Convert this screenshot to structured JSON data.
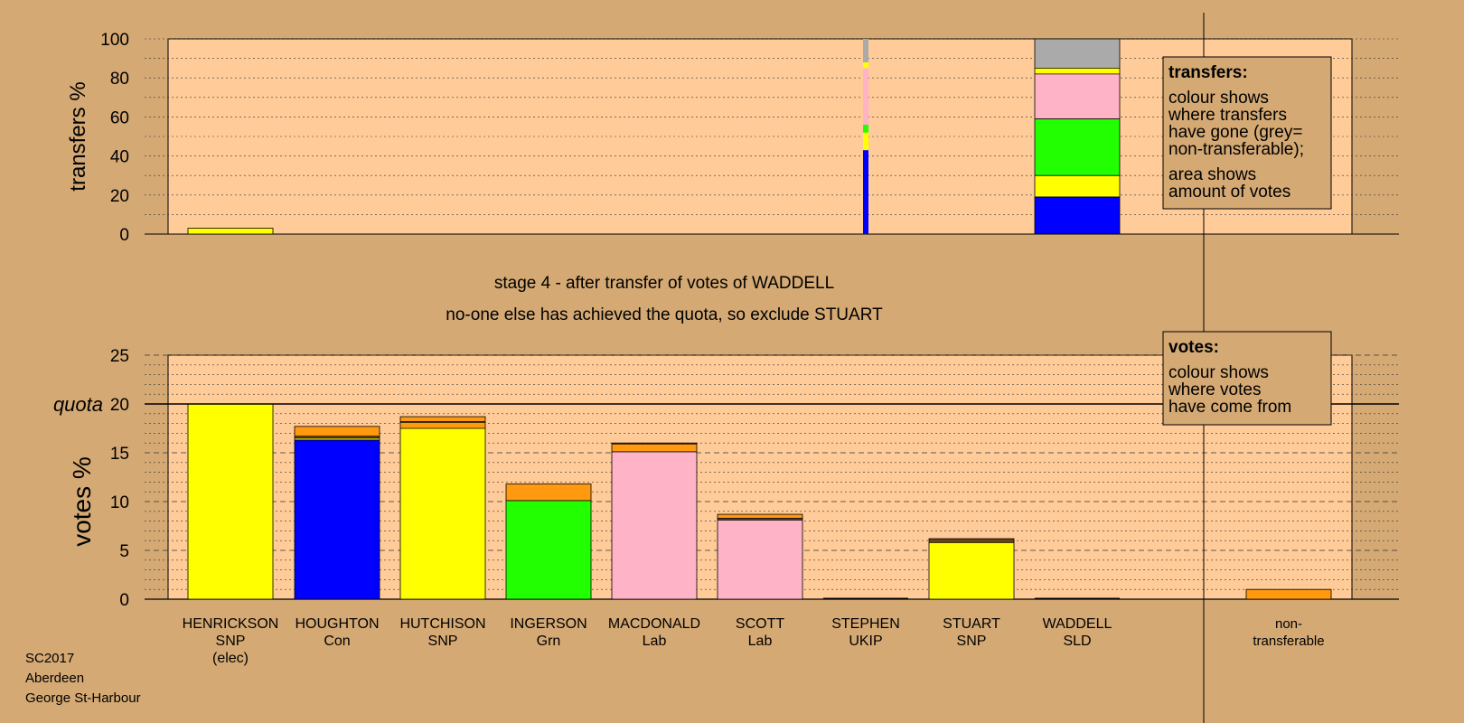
{
  "colors": {
    "page_bg": "#d4a974",
    "plot_bg": "#ffcc99",
    "snp": "#ffff00",
    "con": "#0000ff",
    "grn": "#22ff00",
    "lab": "#ffb3c6",
    "ld": "#ff9910",
    "ukip": "#6b4016",
    "sld": "#7a4a1e",
    "nt": "#aaaaaa"
  },
  "chart_data": [
    {
      "type": "bar",
      "name": "transfers",
      "ylabel": "transfers %",
      "ylim": [
        0,
        100
      ],
      "yticks": [
        "0",
        "20",
        "40",
        "60",
        "80",
        "100"
      ],
      "grid": "dotted every 10",
      "categories": [
        "HENRICKSON",
        "HOUGHTON",
        "HUTCHISON",
        "INGERSON",
        "MACDONALD",
        "SCOTT",
        "STEPHEN",
        "STUART",
        "WADDELL",
        "non-transferable"
      ],
      "bars": [
        {
          "index": 0,
          "width": "wide",
          "segments": [
            {
              "color": "snp",
              "from": 0,
              "to": 3
            }
          ]
        },
        {
          "index": 6,
          "width": "thin",
          "segments": [
            {
              "color": "con",
              "from": 0,
              "to": 43
            },
            {
              "color": "snp",
              "from": 43,
              "to": 52
            },
            {
              "color": "grn",
              "from": 52,
              "to": 56
            },
            {
              "color": "lab",
              "from": 56,
              "to": 85
            },
            {
              "color": "snp",
              "from": 85,
              "to": 88
            },
            {
              "color": "nt",
              "from": 88,
              "to": 100
            }
          ]
        },
        {
          "index": 8,
          "width": "wide",
          "segments": [
            {
              "color": "con",
              "from": 0,
              "to": 19
            },
            {
              "color": "snp",
              "from": 19,
              "to": 30
            },
            {
              "color": "grn",
              "from": 30,
              "to": 59
            },
            {
              "color": "lab",
              "from": 59,
              "to": 82
            },
            {
              "color": "snp",
              "from": 82,
              "to": 85
            },
            {
              "color": "nt",
              "from": 85,
              "to": 100
            }
          ]
        }
      ],
      "legend": {
        "placement": "top-right",
        "title": "transfers:",
        "lines1": [
          "colour shows",
          "where transfers",
          "have gone (grey=",
          "non-transferable);"
        ],
        "lines2": [
          "area shows",
          "amount of votes"
        ]
      }
    },
    {
      "type": "bar",
      "name": "votes",
      "ylabel": "votes %",
      "ylim": [
        0,
        25
      ],
      "yticks": [
        "0",
        "5",
        "10",
        "15",
        "20",
        "25"
      ],
      "quota": 20,
      "quota_label": "quota",
      "grid": "dotted every 1, dashed every 5",
      "categories": [
        "HENRICKSON",
        "HOUGHTON",
        "HUTCHISON",
        "INGERSON",
        "MACDONALD",
        "SCOTT",
        "STEPHEN",
        "STUART",
        "WADDELL",
        "non-transferable"
      ],
      "bars": [
        {
          "index": 0,
          "segments": [
            {
              "color": "snp",
              "from": 0,
              "to": 20
            }
          ]
        },
        {
          "index": 1,
          "segments": [
            {
              "color": "con",
              "from": 0,
              "to": 16.3
            },
            {
              "color": "snp",
              "from": 16.3,
              "to": 16.5
            },
            {
              "color": "sld",
              "from": 16.5,
              "to": 16.7
            },
            {
              "color": "ld",
              "from": 16.7,
              "to": 17.7
            }
          ]
        },
        {
          "index": 2,
          "segments": [
            {
              "color": "snp",
              "from": 0,
              "to": 17.5
            },
            {
              "color": "ld",
              "from": 17.5,
              "to": 18.1
            },
            {
              "color": "snp",
              "from": 18.1,
              "to": 18.2
            },
            {
              "color": "ld",
              "from": 18.2,
              "to": 18.7
            }
          ]
        },
        {
          "index": 3,
          "segments": [
            {
              "color": "grn",
              "from": 0,
              "to": 10.1
            },
            {
              "color": "ld",
              "from": 10.1,
              "to": 11.8
            }
          ]
        },
        {
          "index": 4,
          "segments": [
            {
              "color": "lab",
              "from": 0,
              "to": 15.1
            },
            {
              "color": "ld",
              "from": 15.1,
              "to": 15.9
            },
            {
              "color": "ukip",
              "from": 15.9,
              "to": 16.0
            }
          ]
        },
        {
          "index": 5,
          "segments": [
            {
              "color": "lab",
              "from": 0,
              "to": 8.1
            },
            {
              "color": "ukip",
              "from": 8.1,
              "to": 8.3
            },
            {
              "color": "ld",
              "from": 8.3,
              "to": 8.7
            }
          ]
        },
        {
          "index": 7,
          "segments": [
            {
              "color": "snp",
              "from": 0,
              "to": 5.8
            },
            {
              "color": "ukip",
              "from": 5.8,
              "to": 6.2
            }
          ]
        },
        {
          "index": 9,
          "segments": [
            {
              "color": "ld",
              "from": 0,
              "to": 1.0
            }
          ]
        }
      ],
      "legend": {
        "placement": "top-right",
        "title": "votes:",
        "lines1": [
          "colour shows",
          "where votes",
          "have come from"
        ]
      }
    }
  ],
  "stage_text": "stage 4 - after transfer of votes of WADDELL",
  "exclude_text": "no-one else has achieved the quota, so exclude STUART",
  "candidates": [
    {
      "name": "HENRICKSON",
      "party": "SNP",
      "note": "(elec)"
    },
    {
      "name": "HOUGHTON",
      "party": "Con",
      "note": ""
    },
    {
      "name": "HUTCHISON",
      "party": "SNP",
      "note": ""
    },
    {
      "name": "INGERSON",
      "party": "Grn",
      "note": ""
    },
    {
      "name": "MACDONALD",
      "party": "Lab",
      "note": ""
    },
    {
      "name": "SCOTT",
      "party": "Lab",
      "note": ""
    },
    {
      "name": "STEPHEN",
      "party": "UKIP",
      "note": ""
    },
    {
      "name": "STUART",
      "party": "SNP",
      "note": ""
    },
    {
      "name": "WADDELL",
      "party": "SLD",
      "note": ""
    }
  ],
  "nontransferable_label": [
    "non-",
    "transferable"
  ],
  "footer": [
    "SC2017",
    "Aberdeen",
    "George St-Harbour"
  ]
}
